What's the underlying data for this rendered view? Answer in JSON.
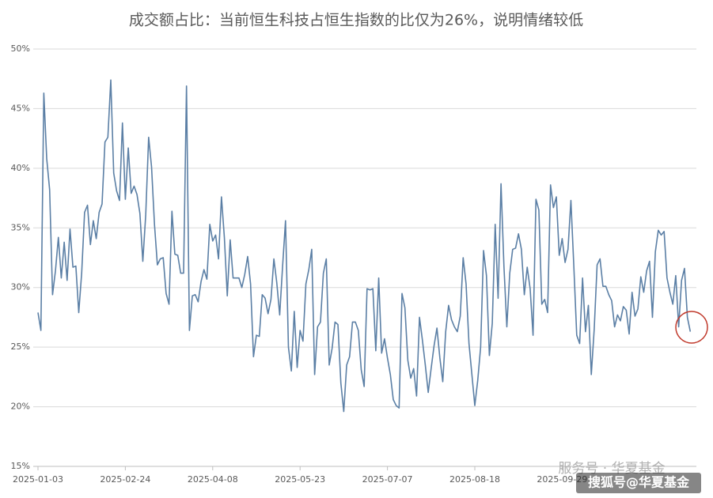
{
  "chart_data": {
    "type": "line",
    "title": "成交额占比：当前恒生科技占恒生指数的比仅为26%，说明情绪较低",
    "categories": [
      "2025-01-03",
      null,
      null,
      null,
      null,
      null,
      null,
      null,
      null,
      null,
      null,
      null,
      null,
      null,
      null,
      null,
      null,
      null,
      null,
      null,
      null,
      null,
      null,
      null,
      null,
      null,
      null,
      null,
      null,
      null,
      "2025-02-24",
      null,
      null,
      null,
      null,
      null,
      null,
      null,
      null,
      null,
      null,
      null,
      null,
      null,
      null,
      null,
      null,
      null,
      null,
      null,
      null,
      null,
      null,
      null,
      null,
      null,
      null,
      null,
      null,
      null,
      "2025-04-08",
      null,
      null,
      null,
      null,
      null,
      null,
      null,
      null,
      null,
      null,
      null,
      null,
      null,
      null,
      null,
      null,
      null,
      null,
      null,
      null,
      null,
      null,
      null,
      null,
      null,
      null,
      null,
      null,
      null,
      "2025-05-23",
      null,
      null,
      null,
      null,
      null,
      null,
      null,
      null,
      null,
      null,
      null,
      null,
      null,
      null,
      null,
      null,
      null,
      null,
      null,
      null,
      null,
      null,
      null,
      null,
      null,
      null,
      null,
      null,
      null,
      "2025-07-07",
      null,
      null,
      null,
      null,
      null,
      null,
      null,
      null,
      null,
      null,
      null,
      null,
      null,
      null,
      null,
      null,
      null,
      null,
      null,
      null,
      null,
      null,
      null,
      null,
      null,
      null,
      null,
      null,
      null,
      "2025-08-18",
      null,
      null,
      null,
      null,
      null,
      null,
      null,
      null,
      null,
      null,
      null,
      null,
      null,
      null,
      null,
      null,
      null,
      null,
      null,
      null,
      null,
      null,
      null,
      null,
      null,
      null,
      null,
      null,
      null,
      "2025-09-29",
      null,
      null,
      null,
      null,
      null,
      null,
      null,
      null,
      null,
      null,
      null,
      null,
      null,
      null,
      null,
      null,
      null,
      null,
      null,
      null,
      null,
      null,
      null,
      null,
      null,
      null,
      null,
      null,
      null,
      null,
      null,
      null,
      null,
      null,
      null,
      null,
      null,
      null,
      null,
      null,
      null,
      null,
      null,
      null
    ],
    "series": [
      {
        "color": "#5b7fa5",
        "values": [
          27.9,
          26.4,
          46.3,
          40.8,
          38.2,
          29.4,
          31.4,
          34.2,
          30.8,
          33.8,
          30.6,
          34.9,
          31.7,
          31.8,
          27.9,
          31.2,
          36.3,
          36.9,
          33.6,
          35.6,
          34.1,
          36.3,
          37,
          42.2,
          42.6,
          47.4,
          39.6,
          38.1,
          37.3,
          43.8,
          37.4,
          41.7,
          37.9,
          38.5,
          37.8,
          36.2,
          32.2,
          36.1,
          42.6,
          40.1,
          35.3,
          31.9,
          32.4,
          32.5,
          29.5,
          28.6,
          36.4,
          32.8,
          32.7,
          31.2,
          31.2,
          46.9,
          26.4,
          29.3,
          29.4,
          28.8,
          30.5,
          31.5,
          30.7,
          35.3,
          33.9,
          34.4,
          32.4,
          37.6,
          34.2,
          29.3,
          34,
          30.8,
          30.8,
          30.8,
          30,
          31.1,
          32.6,
          30.3,
          24.2,
          26,
          25.9,
          29.4,
          29.1,
          27.8,
          29,
          32.4,
          30.4,
          27.7,
          31.8,
          35.6,
          25,
          23,
          28,
          23.3,
          26.4,
          25.5,
          30.3,
          31.5,
          33.2,
          22.7,
          26.7,
          27.1,
          31.2,
          32.4,
          23.5,
          24.9,
          27.1,
          26.9,
          22,
          19.6,
          23.5,
          24.2,
          27.1,
          27.1,
          26.4,
          23.1,
          21.7,
          29.9,
          29.8,
          29.9,
          24.7,
          30.8,
          24.5,
          25.7,
          24.1,
          22.7,
          20.6,
          20.1,
          19.9,
          29.5,
          28.3,
          23.9,
          22.4,
          23.2,
          20.9,
          27.5,
          25.6,
          23.5,
          21.2,
          23.2,
          25.1,
          26.6,
          24.1,
          22.1,
          26.3,
          28.5,
          27.3,
          26.7,
          26.3,
          27.6,
          32.5,
          30.3,
          25.3,
          22.7,
          20.1,
          22.2,
          25,
          33.1,
          31,
          24.3,
          27,
          35.3,
          29.1,
          38.7,
          31.8,
          26.7,
          31.2,
          33.2,
          33.3,
          34.5,
          33.2,
          29.4,
          31.7,
          29.9,
          26,
          37.4,
          36.5,
          28.6,
          29,
          27.9,
          38.6,
          36.7,
          37.6,
          32.7,
          34.1,
          32.1,
          33.2,
          37.3,
          31.8,
          26,
          25.3,
          30.8,
          26.3,
          28.5,
          22.7,
          26.5,
          31.9,
          32.4,
          30.1,
          30.1,
          29.4,
          28.9,
          26.7,
          27.7,
          27.2,
          28.4,
          28.1,
          26.1,
          29.6,
          27.6,
          28.2,
          30.9,
          29.6,
          31.4,
          32.2,
          27.5,
          33,
          34.8,
          34.4,
          34.7,
          30.8,
          29.6,
          28.6,
          31,
          26.7,
          30.6,
          31.6,
          27.5,
          26.3
        ]
      }
    ],
    "ylim": [
      15,
      50
    ],
    "yticks": [
      {
        "value": 15,
        "label": "15%"
      },
      {
        "value": 20,
        "label": "20%"
      },
      {
        "value": 25,
        "label": "25%"
      },
      {
        "value": 30,
        "label": "30%"
      },
      {
        "value": 35,
        "label": "35%"
      },
      {
        "value": 40,
        "label": "40%"
      },
      {
        "value": 45,
        "label": "45%"
      },
      {
        "value": 50,
        "label": "50%"
      }
    ],
    "grid": true,
    "watermark": [
      "服务号 · 华夏基金",
      "搜狐号@华夏基金"
    ]
  }
}
